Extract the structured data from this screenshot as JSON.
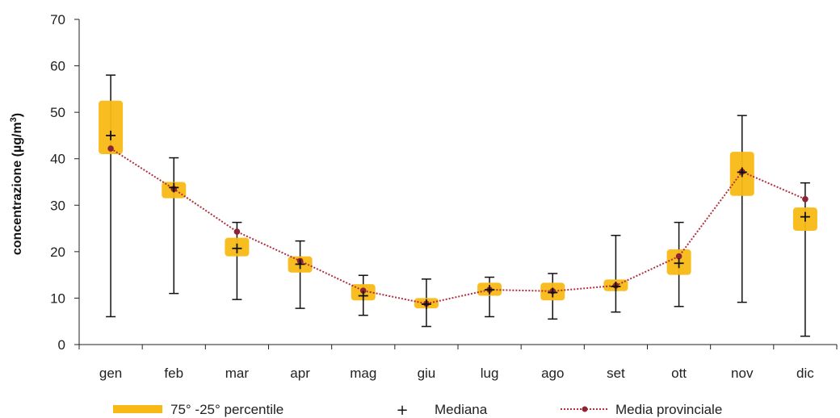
{
  "chart_data": {
    "type": "box",
    "ylabel_parts": [
      "concentrazione (µg/m",
      "3",
      ")"
    ],
    "ylim": [
      0,
      70
    ],
    "yticks": [
      "0",
      "10",
      "20",
      "30",
      "40",
      "50",
      "60",
      "70"
    ],
    "categories": [
      "gen",
      "feb",
      "mar",
      "apr",
      "mag",
      "giu",
      "lug",
      "ago",
      "set",
      "ott",
      "nov",
      "dic"
    ],
    "series": [
      {
        "name": "75° -25° percentile",
        "kind": "box",
        "p25": [
          41,
          31.5,
          19,
          15.5,
          9.5,
          7.8,
          10.5,
          9.5,
          11.5,
          15,
          32,
          24.5
        ],
        "p75": [
          52.5,
          35,
          23,
          19,
          13,
          10,
          13.3,
          13.3,
          14,
          20.5,
          41.5,
          29.5
        ]
      },
      {
        "name": "whiskers",
        "kind": "range",
        "min": [
          6,
          11,
          9.7,
          7.8,
          6.3,
          3.9,
          6,
          5.5,
          7,
          8.2,
          9.1,
          1.8
        ],
        "max": [
          58,
          40.2,
          26.3,
          22.3,
          14.9,
          14.1,
          14.5,
          15.3,
          23.5,
          26.3,
          49.3,
          34.8
        ]
      },
      {
        "name": "Mediana",
        "kind": "marker",
        "values": [
          45,
          33.8,
          20.7,
          17.3,
          10.5,
          8.7,
          11.8,
          11.2,
          12.5,
          17.5,
          37.1,
          27.5
        ]
      },
      {
        "name": "Media provinciale",
        "kind": "line",
        "values": [
          42.2,
          33.5,
          24.3,
          18,
          11.6,
          8.8,
          11.8,
          11.5,
          12.7,
          19,
          37.2,
          31.3
        ]
      }
    ],
    "grid": false,
    "legend": "bottom",
    "colors": {
      "box": "#f8b914",
      "whisker": "#111111",
      "median": "#111111",
      "mean_line": "#b03040",
      "mean_marker": "#8c2433"
    }
  }
}
